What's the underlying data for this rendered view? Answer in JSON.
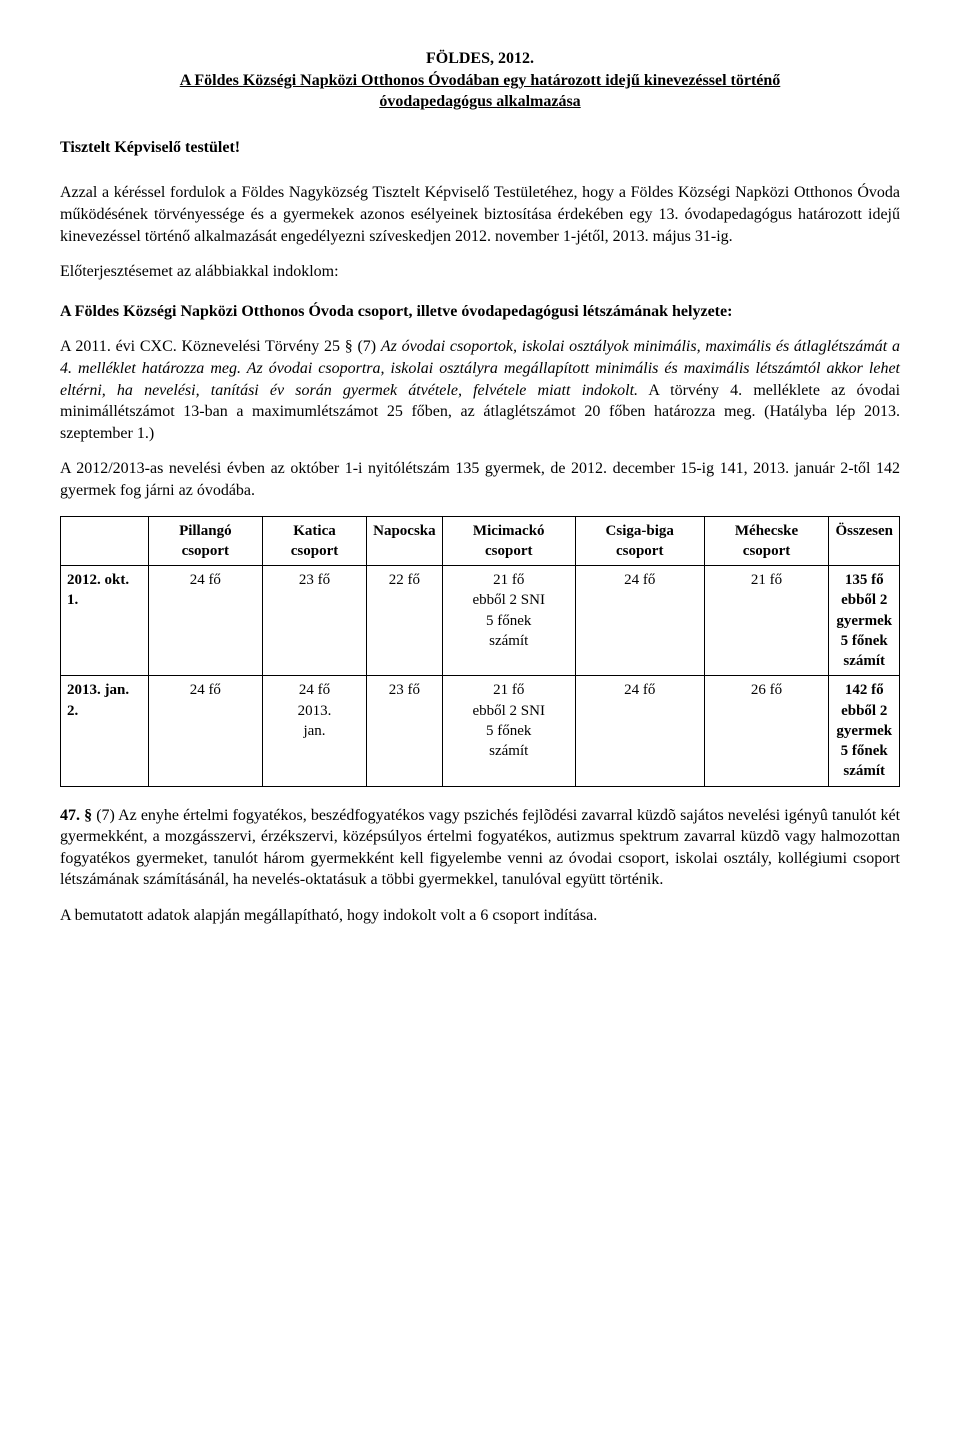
{
  "title": {
    "line1": "FÖLDES, 2012.",
    "line2": "A Földes Községi Napközi Otthonos Óvodában egy határozott idejű kinevezéssel történő",
    "line3": "óvodapedagógus alkalmazása"
  },
  "salutation": "Tisztelt Képviselő testület!",
  "para1": "Azzal a kéréssel fordulok a Földes Nagyközség Tisztelt Képviselő Testületéhez, hogy a Földes Községi Napközi Otthonos Óvoda működésének törvényessége és a gyermekek azonos esélyeinek biztosítása érdekében egy 13. óvodapedagógus határozott idejű kinevezéssel történő alkalmazását engedélyezni szíveskedjen 2012. november 1-jétől, 2013. május 31-ig.",
  "para1b": "Előterjesztésemet az alábbiakkal indoklom:",
  "section_heading": "A Földes Községi Napközi Otthonos Óvoda csoport, illetve óvodapedagógusi létszámának helyzete:",
  "para2_prefix": "A 2011. évi CXC. Köznevelési Törvény 25 § (7) ",
  "para2_italic": "Az óvodai csoportok, iskolai osztályok minimális, maximális és átlaglétszámát a 4. melléklet határozza meg. Az óvodai csoportra, iskolai osztályra megállapított minimális és maximális létszámtól akkor lehet eltérni, ha nevelési, tanítási év során gyermek átvétele, felvétele miatt indokolt.",
  "para2_suffix": " A törvény 4. melléklete az óvodai minimállétszámot 13-ban a maximumlétszámot 25 főben, az átlaglétszámot 20 főben határozza meg. (Hatályba lép 2013. szeptember 1.)",
  "para3": "A 2012/2013-as nevelési évben az október 1-i nyitólétszám 135 gyermek, de 2012. december 15-ig 141, 2013. január 2-től 142 gyermek fog járni az óvodába.",
  "table": {
    "columns": [
      "",
      "Pillangó csoport",
      "Katica csoport",
      "Napocska",
      "Micimackó csoport",
      "Csiga-biga csoport",
      "Méhecske csoport",
      "Összesen"
    ],
    "rows": [
      {
        "hdr": "2012. okt. 1.",
        "cells": [
          "24 fő",
          "23 fő",
          "22 fő",
          "21 fő\nebből 2 SNI\n5 főnek\nszámít",
          "24 fő",
          "21 fő",
          "135 fő\nebből 2\ngyermek\n5 főnek\nszámít"
        ]
      },
      {
        "hdr": "2013. jan. 2.",
        "cells": [
          "24 fő",
          "24 fő\n2013.\njan.",
          "23 fő",
          "21 fő\nebből 2 SNI\n5 főnek\nszámít",
          "24 fő",
          "26 fő",
          "142 fő\nebből 2\ngyermek\n5 főnek\nszámít"
        ]
      }
    ]
  },
  "para4_ref": "47. §",
  "para4": " (7) Az enyhe értelmi fogyatékos, beszédfogyatékos vagy pszichés fejlõdési zavarral küzdõ sajátos nevelési igényû tanulót két gyermekként, a mozgásszervi, érzékszervi, középsúlyos értelmi fogyatékos, autizmus spektrum zavarral küzdõ vagy halmozottan fogyatékos gyermeket, tanulót három gyermekként kell figyelembe venni az óvodai csoport, iskolai osztály, kollégiumi csoport létszámának számításánál, ha nevelés-oktatásuk a többi gyermekkel, tanulóval együtt történik.",
  "para5": "A bemutatott adatok alapján megállapítható, hogy indokolt volt a 6 csoport indítása."
}
